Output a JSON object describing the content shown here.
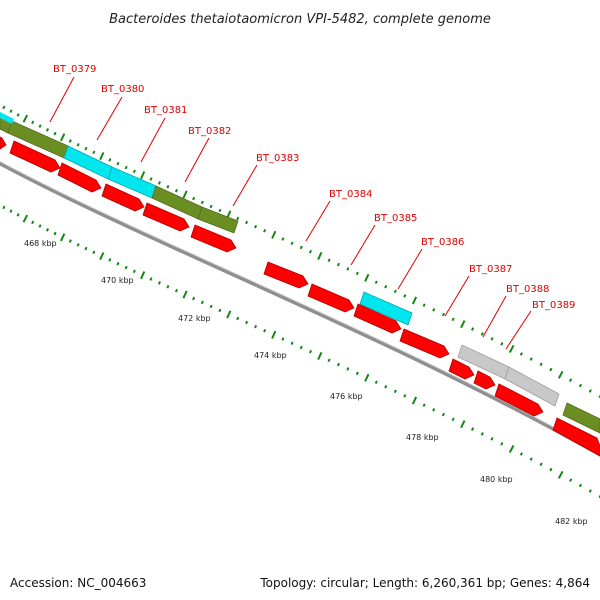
{
  "title": "Bacteroides thetaiotaomicron VPI-5482, complete genome",
  "footer": {
    "accession": "Accession: NC_004663",
    "topology": "Topology: circular; Length: 6,260,361 bp; Genes: 4,864"
  },
  "colors": {
    "forward_gene": "#ff0000",
    "green_feature": "#6b8e23",
    "cyan_feature": "#00e5ee",
    "grey_feature": "#c8c8c8",
    "label": "#e00000",
    "tick": "#138813",
    "backbone": "#8f8f8f"
  },
  "gene_labels": [
    "BT_0379",
    "BT_0380",
    "BT_0381",
    "BT_0382",
    "BT_0383",
    "BT_0384",
    "BT_0385",
    "BT_0386",
    "BT_0387",
    "BT_0388",
    "BT_0389"
  ],
  "scale_labels": [
    "468 kbp",
    "470 kbp",
    "472 kbp",
    "474 kbp",
    "476 kbp",
    "478 kbp",
    "480 kbp",
    "482 kbp"
  ]
}
